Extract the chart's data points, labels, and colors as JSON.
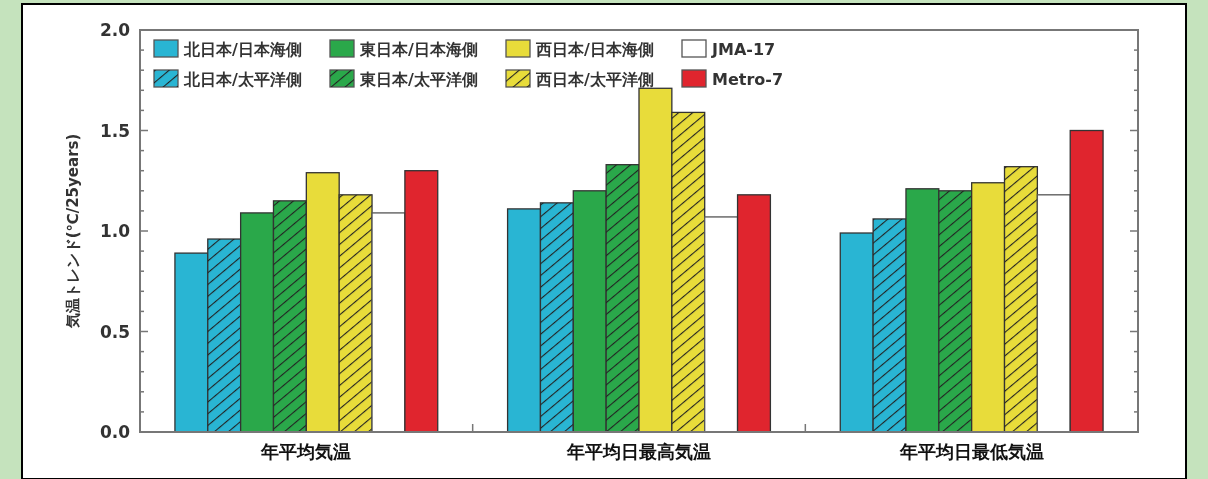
{
  "chart_data": {
    "type": "bar",
    "ylabel": "気温トレンド(℃/25years)",
    "categories": [
      "年平均気温",
      "年平均日最高気温",
      "年平均日最低気温"
    ],
    "series": [
      {
        "name": "北日本/日本海側",
        "color": "#29b5d3",
        "values": [
          0.89,
          1.11,
          0.99
        ]
      },
      {
        "name": "北日本/太平洋側",
        "color": "#29b5d3",
        "values": [
          0.96,
          1.14,
          1.06
        ]
      },
      {
        "name": "東日本/日本海側",
        "color": "#2aa84a",
        "values": [
          1.09,
          1.2,
          1.21
        ]
      },
      {
        "name": "東日本/太平洋側",
        "color": "#2aa84a",
        "values": [
          1.15,
          1.33,
          1.2
        ]
      },
      {
        "name": "西日本/日本海側",
        "color": "#e8dc3a",
        "values": [
          1.29,
          1.71,
          1.24
        ]
      },
      {
        "name": "西日本/太平洋側",
        "color": "#e8dc3a",
        "values": [
          1.18,
          1.59,
          1.32
        ]
      },
      {
        "name": "JMA-17",
        "color": "#ffffff",
        "values": [
          1.09,
          1.07,
          1.18
        ]
      },
      {
        "name": "Metro-7",
        "color": "#e0252e",
        "values": [
          1.3,
          1.18,
          1.5
        ]
      }
    ],
    "ylim": [
      0,
      2
    ],
    "yticks": [
      {
        "value": 0,
        "label": "0.0"
      },
      {
        "value": 0.1,
        "label": null
      },
      {
        "value": 0.2,
        "label": null
      },
      {
        "value": 0.3,
        "label": null
      },
      {
        "value": 0.4,
        "label": null
      },
      {
        "value": 0.5,
        "label": "0.5"
      },
      {
        "value": 0.6,
        "label": null
      },
      {
        "value": 0.7,
        "label": null
      },
      {
        "value": 0.8,
        "label": null
      },
      {
        "value": 0.9,
        "label": null
      },
      {
        "value": 1.0,
        "label": "1.0"
      },
      {
        "value": 1.1,
        "label": null
      },
      {
        "value": 1.2,
        "label": null
      },
      {
        "value": 1.3,
        "label": null
      },
      {
        "value": 1.4,
        "label": null
      },
      {
        "value": 1.5,
        "label": "1.5"
      },
      {
        "value": 1.6,
        "label": null
      },
      {
        "value": 1.7,
        "label": null
      },
      {
        "value": 1.8,
        "label": null
      },
      {
        "value": 1.9,
        "label": null
      },
      {
        "value": 2.0,
        "label": "2.0"
      }
    ],
    "legend": "top"
  }
}
